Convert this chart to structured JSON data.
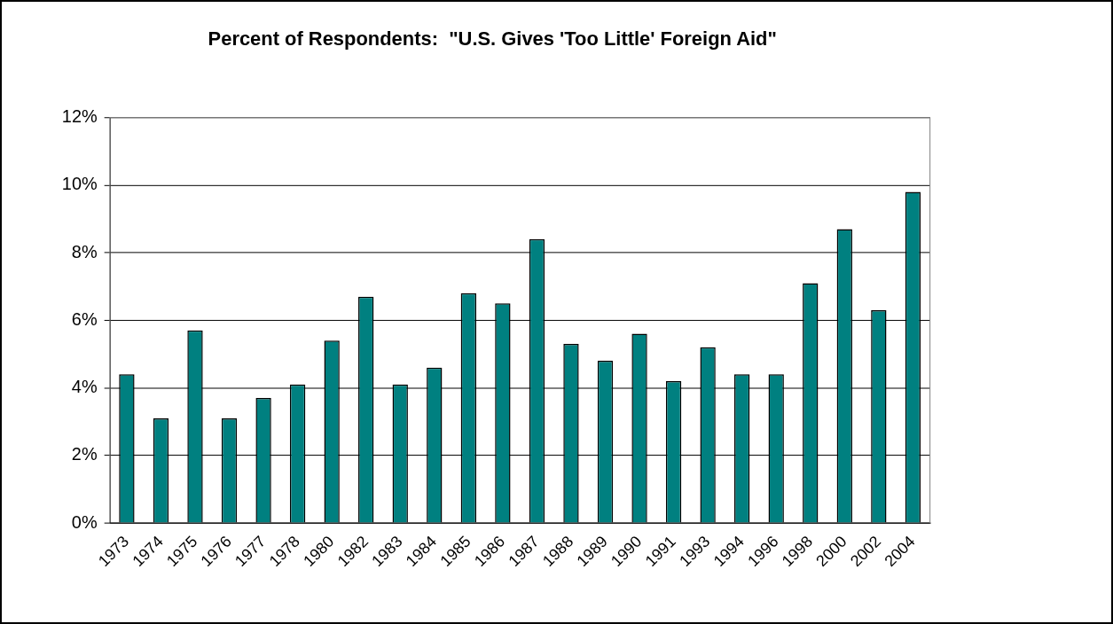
{
  "chart_data": {
    "type": "bar",
    "title": "Percent of Respondents:  \"U.S. Gives 'Too Little' Foreign Aid\"",
    "categories": [
      "1973",
      "1974",
      "1975",
      "1976",
      "1977",
      "1978",
      "1980",
      "1982",
      "1983",
      "1984",
      "1985",
      "1986",
      "1987",
      "1988",
      "1989",
      "1990",
      "1991",
      "1993",
      "1994",
      "1996",
      "1998",
      "2000",
      "2002",
      "2004"
    ],
    "values": [
      4.4,
      3.1,
      5.7,
      3.1,
      3.7,
      4.1,
      5.4,
      6.7,
      4.1,
      4.6,
      6.8,
      6.5,
      8.4,
      5.3,
      4.8,
      5.6,
      4.2,
      5.2,
      4.4,
      4.4,
      7.1,
      8.7,
      6.3,
      9.8
    ],
    "color": "#008080",
    "ylim": [
      0,
      12
    ],
    "yticks": [
      {
        "value": 0,
        "label": "0%"
      },
      {
        "value": 2,
        "label": "2%"
      },
      {
        "value": 4,
        "label": "4%"
      },
      {
        "value": 6,
        "label": "6%"
      },
      {
        "value": 8,
        "label": "8%"
      },
      {
        "value": 10,
        "label": "10%"
      },
      {
        "value": 12,
        "label": "12%"
      }
    ],
    "grid": "y",
    "legend": false
  }
}
